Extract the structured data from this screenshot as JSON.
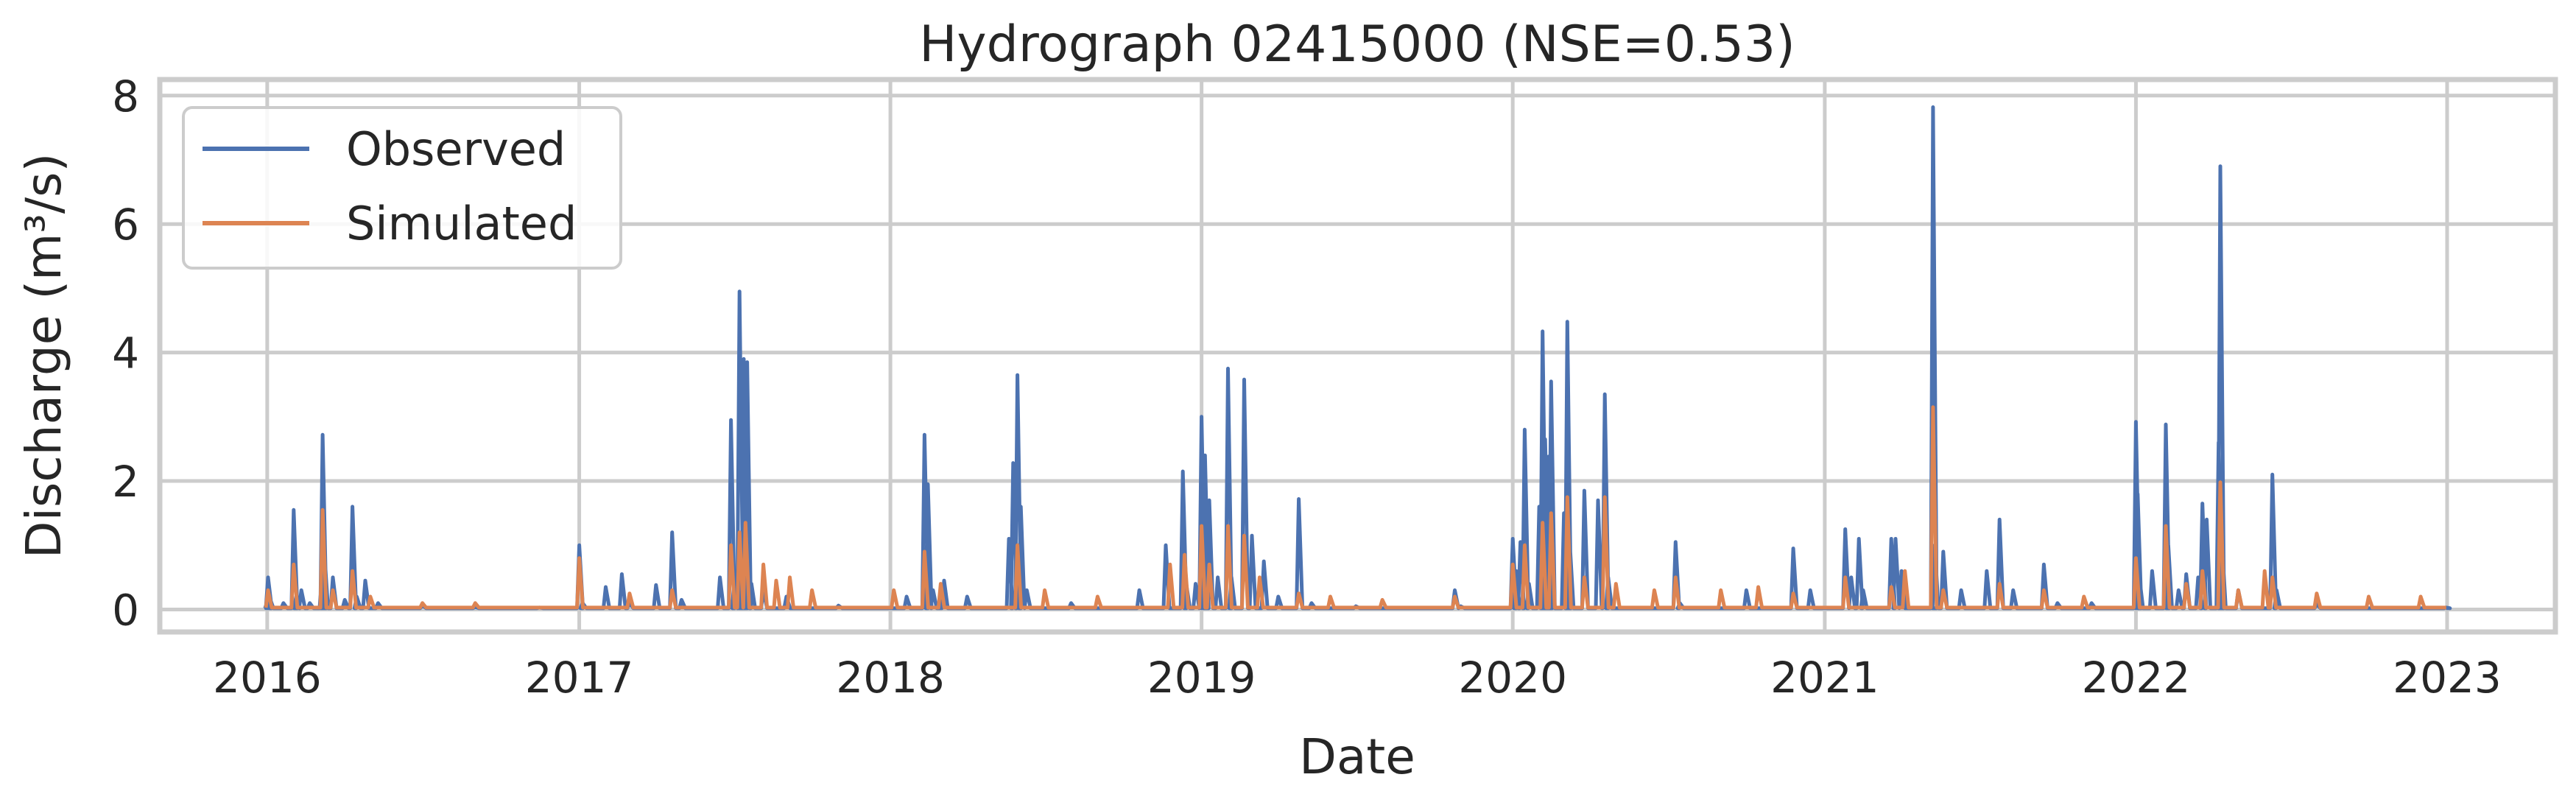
{
  "chart_data": {
    "type": "line",
    "title": "Hydrograph 02415000  (NSE=0.53)",
    "xlabel": "Date",
    "ylabel": "Discharge (m³/s)",
    "xlim": [
      "2015-08-28",
      "2023-05-08"
    ],
    "ylim": [
      -0.35,
      8.25
    ],
    "x_ticks": [
      "2016",
      "2017",
      "2018",
      "2019",
      "2020",
      "2021",
      "2022",
      "2023"
    ],
    "y_ticks": [
      0,
      2,
      4,
      6,
      8
    ],
    "grid": true,
    "legend_position": "upper-left",
    "colors": {
      "observed": "#4c72b0",
      "simulated": "#dd8452"
    },
    "series": [
      {
        "name": "Observed",
        "color": "#4c72b0",
        "points": [
          [
            "2016-01-01",
            0.12
          ],
          [
            "2016-01-02",
            0.5
          ],
          [
            "2016-01-04",
            0.18
          ],
          [
            "2016-01-20",
            0.1
          ],
          [
            "2016-02-01",
            1.55
          ],
          [
            "2016-02-04",
            0.2
          ],
          [
            "2016-02-10",
            0.3
          ],
          [
            "2016-02-20",
            0.1
          ],
          [
            "2016-03-05",
            0.5
          ],
          [
            "2016-03-06",
            2.72
          ],
          [
            "2016-03-08",
            0.9
          ],
          [
            "2016-03-18",
            0.5
          ],
          [
            "2016-04-01",
            0.15
          ],
          [
            "2016-04-10",
            1.6
          ],
          [
            "2016-04-15",
            0.2
          ],
          [
            "2016-04-25",
            0.45
          ],
          [
            "2016-05-10",
            0.1
          ],
          [
            "2016-07-01",
            0.06
          ],
          [
            "2016-09-01",
            0.04
          ],
          [
            "2016-11-15",
            0.03
          ],
          [
            "2017-01-01",
            1.0
          ],
          [
            "2017-01-05",
            0.1
          ],
          [
            "2017-02-01",
            0.35
          ],
          [
            "2017-02-20",
            0.55
          ],
          [
            "2017-03-01",
            0.1
          ],
          [
            "2017-04-01",
            0.38
          ],
          [
            "2017-04-20",
            1.2
          ],
          [
            "2017-05-01",
            0.15
          ],
          [
            "2017-06-15",
            0.5
          ],
          [
            "2017-06-28",
            2.95
          ],
          [
            "2017-07-02",
            0.5
          ],
          [
            "2017-07-08",
            4.95
          ],
          [
            "2017-07-10",
            1.2
          ],
          [
            "2017-07-13",
            3.9
          ],
          [
            "2017-07-17",
            3.85
          ],
          [
            "2017-07-22",
            0.4
          ],
          [
            "2017-08-05",
            0.3
          ],
          [
            "2017-09-01",
            0.2
          ],
          [
            "2017-11-01",
            0.06
          ],
          [
            "2018-01-20",
            0.2
          ],
          [
            "2018-02-10",
            2.72
          ],
          [
            "2018-02-14",
            1.95
          ],
          [
            "2018-02-20",
            0.3
          ],
          [
            "2018-03-05",
            0.45
          ],
          [
            "2018-04-01",
            0.2
          ],
          [
            "2018-05-20",
            1.1
          ],
          [
            "2018-05-25",
            2.28
          ],
          [
            "2018-05-30",
            3.65
          ],
          [
            "2018-06-03",
            1.6
          ],
          [
            "2018-06-10",
            0.3
          ],
          [
            "2018-08-01",
            0.1
          ],
          [
            "2018-10-20",
            0.3
          ],
          [
            "2018-11-20",
            1.0
          ],
          [
            "2018-12-10",
            2.15
          ],
          [
            "2018-12-14",
            0.4
          ],
          [
            "2018-12-25",
            0.4
          ],
          [
            "2019-01-01",
            3.0
          ],
          [
            "2019-01-03",
            0.8
          ],
          [
            "2019-01-05",
            2.4
          ],
          [
            "2019-01-10",
            1.7
          ],
          [
            "2019-01-20",
            0.5
          ],
          [
            "2019-02-01",
            3.75
          ],
          [
            "2019-02-05",
            0.5
          ],
          [
            "2019-02-20",
            3.58
          ],
          [
            "2019-03-01",
            1.15
          ],
          [
            "2019-03-15",
            0.75
          ],
          [
            "2019-04-01",
            0.2
          ],
          [
            "2019-04-25",
            1.72
          ],
          [
            "2019-05-10",
            0.1
          ],
          [
            "2019-07-01",
            0.05
          ],
          [
            "2019-10-25",
            0.3
          ],
          [
            "2019-11-01",
            0.05
          ],
          [
            "2020-01-01",
            1.1
          ],
          [
            "2020-01-05",
            0.6
          ],
          [
            "2020-01-10",
            1.05
          ],
          [
            "2020-01-15",
            2.8
          ],
          [
            "2020-01-20",
            0.4
          ],
          [
            "2020-02-01",
            1.6
          ],
          [
            "2020-02-05",
            4.33
          ],
          [
            "2020-02-08",
            2.65
          ],
          [
            "2020-02-12",
            2.38
          ],
          [
            "2020-02-15",
            3.55
          ],
          [
            "2020-03-01",
            1.5
          ],
          [
            "2020-03-05",
            4.48
          ],
          [
            "2020-03-08",
            1.0
          ],
          [
            "2020-03-25",
            1.85
          ],
          [
            "2020-04-10",
            1.7
          ],
          [
            "2020-04-18",
            3.35
          ],
          [
            "2020-04-22",
            0.5
          ],
          [
            "2020-07-10",
            1.05
          ],
          [
            "2020-07-15",
            0.1
          ],
          [
            "2020-10-01",
            0.3
          ],
          [
            "2020-11-25",
            0.95
          ],
          [
            "2020-12-15",
            0.3
          ],
          [
            "2021-01-25",
            1.25
          ],
          [
            "2021-02-01",
            0.5
          ],
          [
            "2021-02-10",
            1.1
          ],
          [
            "2021-02-15",
            0.3
          ],
          [
            "2021-03-20",
            1.1
          ],
          [
            "2021-03-25",
            1.1
          ],
          [
            "2021-04-01",
            0.6
          ],
          [
            "2021-05-08",
            7.82
          ],
          [
            "2021-05-10",
            1.0
          ],
          [
            "2021-05-20",
            0.9
          ],
          [
            "2021-06-10",
            0.3
          ],
          [
            "2021-07-10",
            0.6
          ],
          [
            "2021-07-25",
            1.4
          ],
          [
            "2021-08-10",
            0.3
          ],
          [
            "2021-09-15",
            0.7
          ],
          [
            "2021-10-01",
            0.1
          ],
          [
            "2021-11-10",
            0.1
          ],
          [
            "2022-01-01",
            2.92
          ],
          [
            "2022-01-03",
            1.8
          ],
          [
            "2022-01-05",
            0.5
          ],
          [
            "2022-01-20",
            0.6
          ],
          [
            "2022-02-05",
            2.88
          ],
          [
            "2022-02-08",
            1.0
          ],
          [
            "2022-02-20",
            0.3
          ],
          [
            "2022-03-01",
            0.55
          ],
          [
            "2022-03-15",
            0.5
          ],
          [
            "2022-03-20",
            1.65
          ],
          [
            "2022-03-25",
            1.4
          ],
          [
            "2022-04-08",
            2.6
          ],
          [
            "2022-04-10",
            6.9
          ],
          [
            "2022-04-12",
            1.0
          ],
          [
            "2022-05-01",
            0.3
          ],
          [
            "2022-06-10",
            2.1
          ],
          [
            "2022-06-15",
            0.3
          ],
          [
            "2022-08-01",
            0.08
          ],
          [
            "2022-12-31",
            0.03
          ]
        ]
      },
      {
        "name": "Simulated",
        "color": "#dd8452",
        "points": [
          [
            "2016-01-02",
            0.3
          ],
          [
            "2016-02-01",
            0.7
          ],
          [
            "2016-03-06",
            1.55
          ],
          [
            "2016-03-18",
            0.3
          ],
          [
            "2016-04-10",
            0.6
          ],
          [
            "2016-05-01",
            0.2
          ],
          [
            "2016-07-01",
            0.1
          ],
          [
            "2016-09-01",
            0.1
          ],
          [
            "2017-01-01",
            0.8
          ],
          [
            "2017-03-01",
            0.25
          ],
          [
            "2017-04-20",
            0.3
          ],
          [
            "2017-06-28",
            1.0
          ],
          [
            "2017-07-08",
            1.2
          ],
          [
            "2017-07-15",
            1.35
          ],
          [
            "2017-08-05",
            0.7
          ],
          [
            "2017-08-20",
            0.45
          ],
          [
            "2017-09-05",
            0.5
          ],
          [
            "2017-10-01",
            0.3
          ],
          [
            "2018-01-05",
            0.3
          ],
          [
            "2018-02-10",
            0.9
          ],
          [
            "2018-03-01",
            0.4
          ],
          [
            "2018-05-30",
            1.0
          ],
          [
            "2018-07-01",
            0.3
          ],
          [
            "2018-09-01",
            0.2
          ],
          [
            "2018-11-25",
            0.7
          ],
          [
            "2018-12-12",
            0.85
          ],
          [
            "2019-01-01",
            1.3
          ],
          [
            "2019-01-10",
            0.7
          ],
          [
            "2019-02-01",
            1.3
          ],
          [
            "2019-02-20",
            1.15
          ],
          [
            "2019-03-10",
            0.5
          ],
          [
            "2019-04-25",
            0.25
          ],
          [
            "2019-06-01",
            0.2
          ],
          [
            "2019-08-01",
            0.15
          ],
          [
            "2019-10-25",
            0.2
          ],
          [
            "2020-01-01",
            0.7
          ],
          [
            "2020-01-15",
            1.0
          ],
          [
            "2020-02-05",
            1.35
          ],
          [
            "2020-02-15",
            1.5
          ],
          [
            "2020-03-05",
            1.75
          ],
          [
            "2020-03-25",
            0.5
          ],
          [
            "2020-04-18",
            1.75
          ],
          [
            "2020-05-01",
            0.4
          ],
          [
            "2020-06-15",
            0.3
          ],
          [
            "2020-07-10",
            0.5
          ],
          [
            "2020-09-01",
            0.3
          ],
          [
            "2020-10-15",
            0.35
          ],
          [
            "2020-11-25",
            0.25
          ],
          [
            "2021-01-25",
            0.5
          ],
          [
            "2021-03-20",
            0.35
          ],
          [
            "2021-04-05",
            0.6
          ],
          [
            "2021-05-08",
            3.15
          ],
          [
            "2021-05-20",
            0.3
          ],
          [
            "2021-07-25",
            0.4
          ],
          [
            "2021-09-15",
            0.3
          ],
          [
            "2021-11-01",
            0.2
          ],
          [
            "2022-01-01",
            0.8
          ],
          [
            "2022-02-05",
            1.3
          ],
          [
            "2022-03-01",
            0.4
          ],
          [
            "2022-03-20",
            0.6
          ],
          [
            "2022-04-10",
            1.98
          ],
          [
            "2022-05-01",
            0.3
          ],
          [
            "2022-06-01",
            0.6
          ],
          [
            "2022-06-10",
            0.5
          ],
          [
            "2022-08-01",
            0.25
          ],
          [
            "2022-10-01",
            0.2
          ],
          [
            "2022-12-01",
            0.2
          ]
        ]
      }
    ]
  }
}
